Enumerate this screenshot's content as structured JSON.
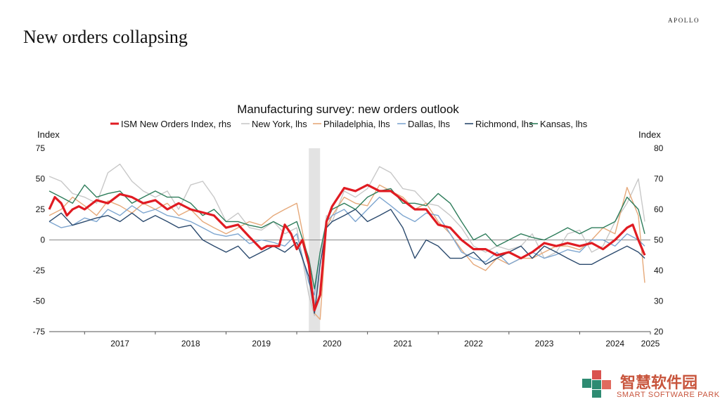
{
  "header": {
    "brand": "APOLLO",
    "headline": "New orders collapsing"
  },
  "watermark": {
    "chinese": "智慧软件园",
    "english": "SMART SOFTWARE PARK"
  },
  "chart_data": {
    "type": "line",
    "title": "Manufacturing survey: new orders outlook",
    "y_left_label": "Index",
    "y_right_label": "Index",
    "y_left_range": [
      -75,
      75
    ],
    "y_right_range": [
      20,
      80
    ],
    "y_left_ticks": [
      "75",
      "50",
      "25",
      "0",
      "-25",
      "-50",
      "-75"
    ],
    "y_right_ticks": [
      "80",
      "70",
      "60",
      "50",
      "40",
      "30",
      "20"
    ],
    "x_range": [
      2016.5,
      2025.0
    ],
    "x_ticks": [
      "2017",
      "2018",
      "2019",
      "2020",
      "2021",
      "2022",
      "2023",
      "2024",
      "2025"
    ],
    "legend_position": "top",
    "grid": false,
    "shaded_period": {
      "label": "",
      "start": 2020.17,
      "end": 2020.33
    },
    "series": [
      {
        "name": "New York, lhs",
        "axis": "left",
        "color": "#c8c8c8",
        "width": 1.4,
        "x": [
          2016.5,
          2016.67,
          2016.83,
          2017.0,
          2017.17,
          2017.33,
          2017.5,
          2017.67,
          2017.83,
          2018.0,
          2018.17,
          2018.33,
          2018.5,
          2018.67,
          2018.83,
          2019.0,
          2019.17,
          2019.33,
          2019.5,
          2019.67,
          2019.83,
          2020.0,
          2020.17,
          2020.25,
          2020.33,
          2020.42,
          2020.5,
          2020.67,
          2020.83,
          2021.0,
          2021.17,
          2021.33,
          2021.5,
          2021.67,
          2021.83,
          2022.0,
          2022.17,
          2022.33,
          2022.5,
          2022.67,
          2022.83,
          2023.0,
          2023.17,
          2023.33,
          2023.5,
          2023.67,
          2023.83,
          2024.0,
          2024.17,
          2024.33,
          2024.5,
          2024.67,
          2024.83,
          2024.92
        ],
        "y": [
          52,
          48,
          38,
          35,
          30,
          55,
          62,
          48,
          40,
          35,
          40,
          25,
          45,
          48,
          35,
          15,
          22,
          10,
          8,
          15,
          5,
          10,
          -45,
          -62,
          -20,
          20,
          15,
          40,
          35,
          42,
          60,
          55,
          42,
          40,
          30,
          28,
          20,
          10,
          -5,
          -10,
          -5,
          -8,
          -5,
          5,
          -15,
          -10,
          5,
          8,
          -10,
          -5,
          15,
          30,
          50,
          15
        ]
      },
      {
        "name": "Philadelphia, lhs",
        "axis": "left",
        "color": "#e6a97a",
        "width": 1.4,
        "x": [
          2016.5,
          2016.67,
          2016.83,
          2017.0,
          2017.17,
          2017.33,
          2017.5,
          2017.67,
          2017.83,
          2018.0,
          2018.17,
          2018.33,
          2018.5,
          2018.67,
          2018.83,
          2019.0,
          2019.17,
          2019.33,
          2019.5,
          2019.67,
          2019.83,
          2020.0,
          2020.17,
          2020.25,
          2020.33,
          2020.42,
          2020.5,
          2020.67,
          2020.83,
          2021.0,
          2021.17,
          2021.33,
          2021.5,
          2021.67,
          2021.83,
          2022.0,
          2022.17,
          2022.33,
          2022.5,
          2022.67,
          2022.83,
          2023.0,
          2023.17,
          2023.33,
          2023.5,
          2023.67,
          2023.83,
          2024.0,
          2024.17,
          2024.33,
          2024.5,
          2024.67,
          2024.83,
          2024.92
        ],
        "y": [
          20,
          25,
          35,
          28,
          20,
          32,
          28,
          22,
          30,
          25,
          30,
          20,
          25,
          15,
          10,
          5,
          10,
          15,
          12,
          20,
          25,
          30,
          -20,
          -60,
          -65,
          10,
          20,
          35,
          30,
          28,
          45,
          40,
          35,
          25,
          30,
          15,
          5,
          -8,
          -20,
          -25,
          -15,
          -20,
          -15,
          -15,
          -10,
          -5,
          -5,
          -8,
          0,
          10,
          5,
          43,
          20,
          -35
        ]
      },
      {
        "name": "Dallas, lhs",
        "axis": "left",
        "color": "#7ea6d0",
        "width": 1.4,
        "x": [
          2016.5,
          2016.67,
          2016.83,
          2017.0,
          2017.17,
          2017.33,
          2017.5,
          2017.67,
          2017.83,
          2018.0,
          2018.17,
          2018.33,
          2018.5,
          2018.67,
          2018.83,
          2019.0,
          2019.17,
          2019.33,
          2019.5,
          2019.67,
          2019.83,
          2020.0,
          2020.17,
          2020.25,
          2020.33,
          2020.42,
          2020.5,
          2020.67,
          2020.83,
          2021.0,
          2021.17,
          2021.33,
          2021.5,
          2021.67,
          2021.83,
          2022.0,
          2022.17,
          2022.33,
          2022.5,
          2022.67,
          2022.83,
          2023.0,
          2023.17,
          2023.33,
          2023.5,
          2023.67,
          2023.83,
          2024.0,
          2024.17,
          2024.33,
          2024.5,
          2024.67,
          2024.83,
          2024.92
        ],
        "y": [
          15,
          10,
          12,
          18,
          15,
          25,
          20,
          28,
          22,
          25,
          20,
          18,
          15,
          10,
          5,
          3,
          5,
          -3,
          0,
          -2,
          -5,
          5,
          -35,
          -45,
          -10,
          15,
          20,
          25,
          15,
          25,
          35,
          28,
          20,
          15,
          22,
          20,
          5,
          -10,
          -15,
          -18,
          -10,
          -20,
          -15,
          -10,
          -15,
          -12,
          -8,
          -10,
          0,
          0,
          -5,
          5,
          0,
          -5
        ]
      },
      {
        "name": "Richmond, lhs",
        "axis": "left",
        "color": "#2b4a6e",
        "width": 1.4,
        "x": [
          2016.5,
          2016.67,
          2016.83,
          2017.0,
          2017.17,
          2017.33,
          2017.5,
          2017.67,
          2017.83,
          2018.0,
          2018.17,
          2018.33,
          2018.5,
          2018.67,
          2018.83,
          2019.0,
          2019.17,
          2019.33,
          2019.5,
          2019.67,
          2019.83,
          2020.0,
          2020.17,
          2020.25,
          2020.33,
          2020.42,
          2020.5,
          2020.67,
          2020.83,
          2021.0,
          2021.17,
          2021.33,
          2021.5,
          2021.67,
          2021.83,
          2022.0,
          2022.17,
          2022.33,
          2022.5,
          2022.67,
          2022.83,
          2023.0,
          2023.17,
          2023.33,
          2023.5,
          2023.67,
          2023.83,
          2024.0,
          2024.17,
          2024.33,
          2024.5,
          2024.67,
          2024.83,
          2024.92
        ],
        "y": [
          15,
          22,
          12,
          15,
          18,
          20,
          15,
          22,
          15,
          20,
          15,
          10,
          12,
          0,
          -5,
          -10,
          -5,
          -15,
          -10,
          -5,
          -10,
          -2,
          -30,
          -60,
          -20,
          10,
          15,
          20,
          25,
          15,
          20,
          25,
          10,
          -15,
          0,
          -5,
          -15,
          -15,
          -10,
          -20,
          -15,
          -10,
          -5,
          -15,
          -5,
          -10,
          -15,
          -20,
          -20,
          -15,
          -10,
          -5,
          -10,
          -15
        ]
      },
      {
        "name": "Kansas, lhs",
        "axis": "left",
        "color": "#2e7d5b",
        "width": 1.4,
        "x": [
          2016.5,
          2016.67,
          2016.83,
          2017.0,
          2017.17,
          2017.33,
          2017.5,
          2017.67,
          2017.83,
          2018.0,
          2018.17,
          2018.33,
          2018.5,
          2018.67,
          2018.83,
          2019.0,
          2019.17,
          2019.33,
          2019.5,
          2019.67,
          2019.83,
          2020.0,
          2020.17,
          2020.25,
          2020.33,
          2020.42,
          2020.5,
          2020.67,
          2020.83,
          2021.0,
          2021.17,
          2021.33,
          2021.5,
          2021.67,
          2021.83,
          2022.0,
          2022.17,
          2022.33,
          2022.5,
          2022.67,
          2022.83,
          2023.0,
          2023.17,
          2023.33,
          2023.5,
          2023.67,
          2023.83,
          2024.0,
          2024.17,
          2024.33,
          2024.5,
          2024.67,
          2024.83,
          2024.92
        ],
        "y": [
          40,
          35,
          30,
          45,
          35,
          38,
          40,
          30,
          35,
          40,
          35,
          35,
          30,
          20,
          25,
          15,
          15,
          12,
          10,
          15,
          10,
          15,
          -15,
          -40,
          -10,
          15,
          25,
          30,
          25,
          35,
          40,
          42,
          30,
          30,
          28,
          38,
          30,
          15,
          0,
          5,
          -5,
          0,
          5,
          2,
          0,
          5,
          10,
          5,
          10,
          10,
          15,
          35,
          25,
          5
        ]
      },
      {
        "name": "ISM New Orders Index, rhs",
        "axis": "right",
        "color": "#e01b22",
        "width": 3.2,
        "x": [
          2016.5,
          2016.58,
          2016.67,
          2016.75,
          2016.83,
          2016.92,
          2017.0,
          2017.17,
          2017.33,
          2017.5,
          2017.67,
          2017.83,
          2018.0,
          2018.17,
          2018.33,
          2018.5,
          2018.67,
          2018.83,
          2019.0,
          2019.17,
          2019.33,
          2019.5,
          2019.58,
          2019.67,
          2019.75,
          2019.83,
          2019.92,
          2020.0,
          2020.08,
          2020.17,
          2020.25,
          2020.33,
          2020.42,
          2020.5,
          2020.67,
          2020.83,
          2021.0,
          2021.17,
          2021.33,
          2021.5,
          2021.67,
          2021.83,
          2022.0,
          2022.17,
          2022.33,
          2022.5,
          2022.67,
          2022.83,
          2023.0,
          2023.17,
          2023.33,
          2023.5,
          2023.67,
          2023.83,
          2024.0,
          2024.17,
          2024.33,
          2024.5,
          2024.67,
          2024.75,
          2024.83,
          2024.92
        ],
        "y": [
          60,
          64,
          62,
          58,
          60,
          61,
          60,
          63,
          62,
          65,
          64,
          62,
          63,
          60,
          62,
          60,
          59,
          58,
          54,
          55,
          51,
          47,
          48,
          48,
          48,
          55,
          52,
          47,
          50,
          42,
          27,
          32,
          56,
          61,
          67,
          66,
          68,
          66,
          66,
          63,
          60,
          60,
          55,
          54,
          50,
          47,
          47,
          45,
          46,
          44,
          46,
          49,
          48,
          49,
          48,
          49,
          47,
          50,
          54,
          55,
          50,
          45
        ]
      }
    ]
  }
}
